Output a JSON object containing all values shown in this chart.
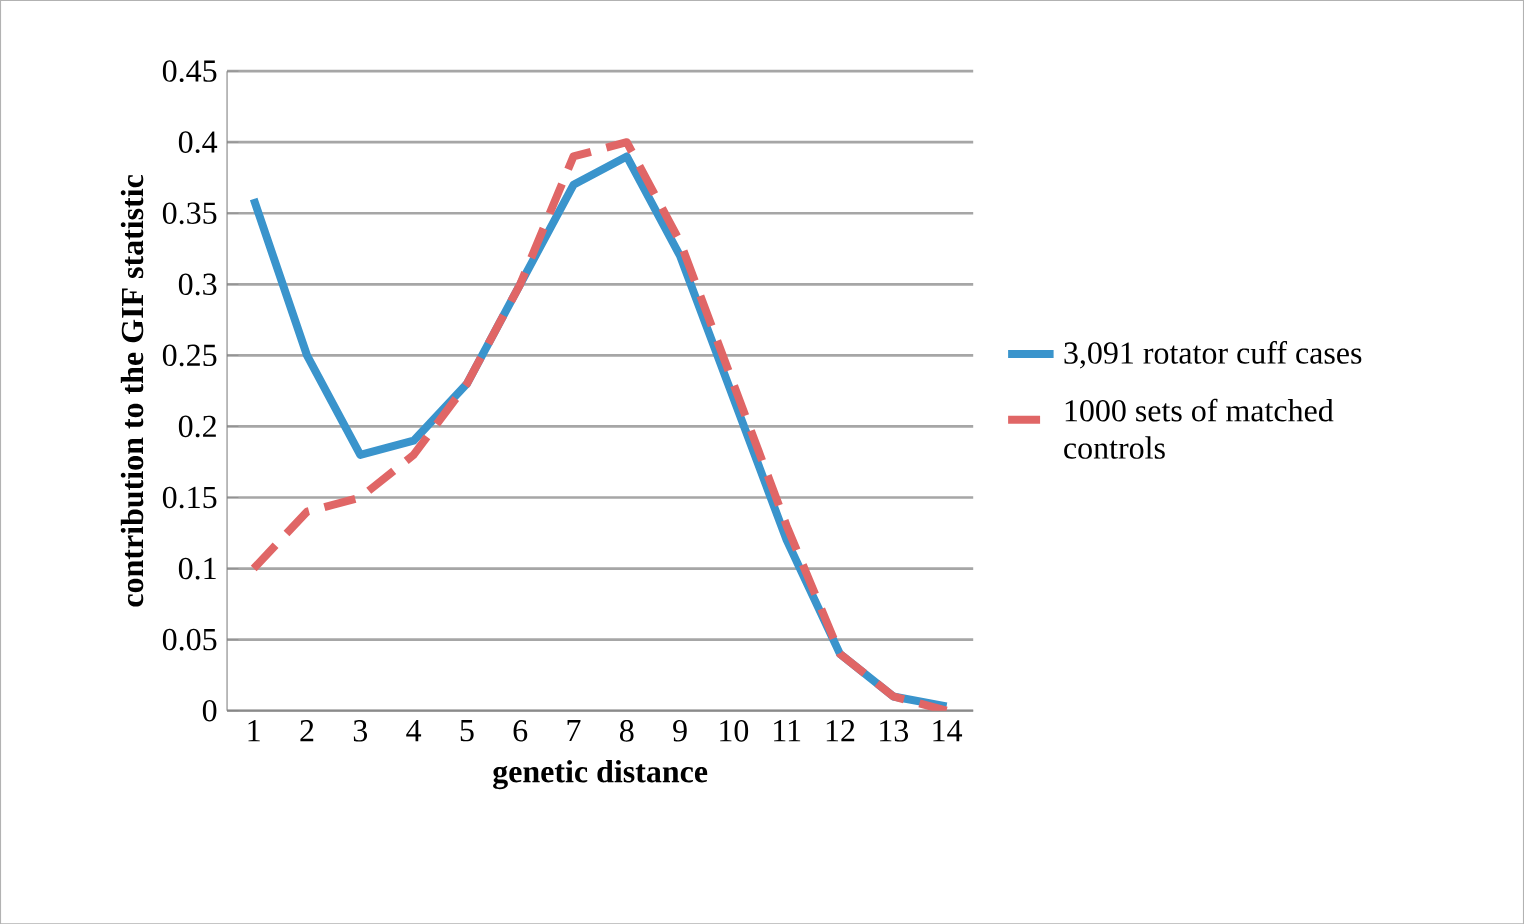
{
  "chart_data": {
    "type": "line",
    "xlabel": "genetic distance",
    "ylabel": "contribution to the GIF statistic",
    "categories": [
      "1",
      "2",
      "3",
      "4",
      "5",
      "6",
      "7",
      "8",
      "9",
      "10",
      "11",
      "12",
      "13",
      "14"
    ],
    "series": [
      {
        "name": "3,091 rotator cuff cases",
        "color": "#3a94cc",
        "line_style": "solid",
        "values": [
          0.36,
          0.25,
          0.18,
          0.19,
          0.23,
          0.3,
          0.37,
          0.39,
          0.32,
          0.22,
          0.12,
          0.04,
          0.01,
          0.003
        ]
      },
      {
        "name": "1000 sets of matched controls",
        "color": "#e06666",
        "line_style": "dashed",
        "values": [
          0.1,
          0.14,
          0.15,
          0.18,
          0.23,
          0.3,
          0.39,
          0.4,
          0.33,
          0.23,
          0.13,
          0.04,
          0.01,
          0
        ]
      }
    ],
    "ylim": [
      0,
      0.45
    ],
    "yticks": [
      0,
      0.05,
      0.1,
      0.15,
      0.2,
      0.25,
      0.3,
      0.35,
      0.4,
      0.45
    ],
    "grid": "y",
    "legend": "right",
    "marker": "none"
  }
}
